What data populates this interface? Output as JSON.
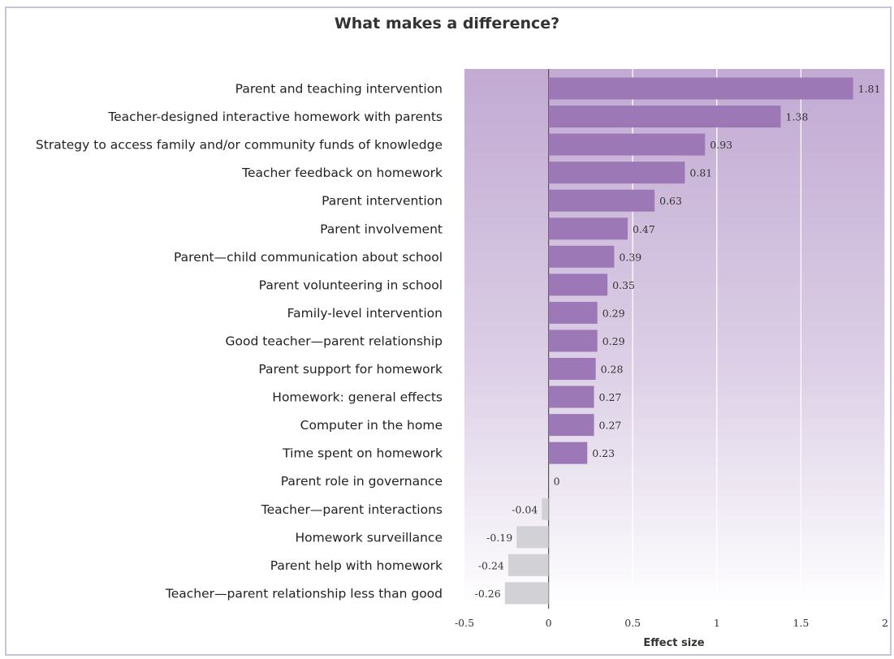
{
  "chart_data": {
    "type": "bar",
    "orientation": "horizontal",
    "title": "What makes a difference?",
    "xlabel": "Effect size",
    "ylabel": "",
    "xlim": [
      -0.5,
      2
    ],
    "xticks": [
      -0.5,
      0,
      0.5,
      1,
      1.5,
      2
    ],
    "xtick_labels": [
      "-0.5",
      "0",
      "0.5",
      "1",
      "1.5",
      "2"
    ],
    "grid": "vertical lines",
    "colors": {
      "positive": "#9c79b6",
      "negative": "#d2d1d6",
      "plot_bg_top": "#c2aad3",
      "plot_bg_bottom": "#ffffff"
    },
    "categories": [
      "Parent and teaching intervention",
      "Teacher-designed interactive homework with parents",
      "Strategy to access family and/or community funds of knowledge",
      "Teacher feedback on homework",
      "Parent intervention",
      "Parent involvement",
      "Parent—child communication about school",
      "Parent volunteering in school",
      "Family-level intervention",
      "Good teacher—parent relationship",
      "Parent support for homework",
      "Homework: general effects",
      "Computer in the home",
      "Time spent on homework",
      "Parent role in governance",
      "Teacher—parent interactions",
      "Homework surveillance",
      "Parent help with homework",
      "Teacher—parent relationship less than good"
    ],
    "values": [
      1.81,
      1.38,
      0.93,
      0.81,
      0.63,
      0.47,
      0.39,
      0.35,
      0.29,
      0.29,
      0.28,
      0.27,
      0.27,
      0.23,
      0,
      -0.04,
      -0.19,
      -0.24,
      -0.26
    ],
    "value_labels": [
      "1.81",
      "1.38",
      "0.93",
      "0.81",
      "0.63",
      "0.47",
      "0.39",
      "0.35",
      "0.29",
      "0.29",
      "0.28",
      "0.27",
      "0.27",
      "0.23",
      "0",
      "-0.04",
      "-0.19",
      "-0.24",
      "-0.26"
    ]
  }
}
